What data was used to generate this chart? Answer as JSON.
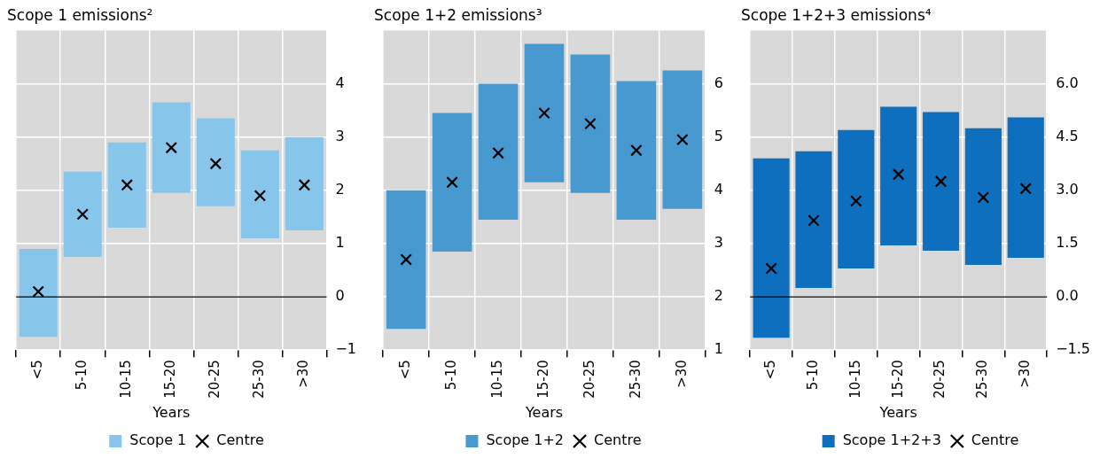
{
  "chart_data": [
    {
      "type": "bar",
      "title": "Scope 1 emissions²",
      "xlabel": "Years",
      "categories": [
        "<5",
        "5-10",
        "10-15",
        "15-20",
        "20-25",
        "25-30",
        ">30"
      ],
      "ylim": [
        -1,
        5
      ],
      "yticks": [
        -1,
        0,
        1,
        2,
        3,
        4
      ],
      "grid": true,
      "legend": "bottom",
      "ref_lines": [
        {
          "axis": "y",
          "value": 0,
          "color": "#000000"
        }
      ],
      "series": [
        {
          "name": "Scope 1",
          "color": "#87c5eb",
          "base": [
            -0.75,
            0.75,
            1.3,
            1.95,
            1.7,
            1.1,
            1.25
          ],
          "values": [
            1.65,
            1.6,
            1.6,
            1.7,
            1.65,
            1.65,
            1.75
          ]
        },
        {
          "name": "Centre",
          "type": "scatter",
          "marker": "cross",
          "color": "#000000",
          "values": [
            0.1,
            1.55,
            2.1,
            2.8,
            2.5,
            1.9,
            2.1
          ]
        }
      ]
    },
    {
      "type": "bar",
      "title": "Scope 1+2 emissions³",
      "xlabel": "Years",
      "categories": [
        "<5",
        "5-10",
        "10-15",
        "15-20",
        "20-25",
        "25-30",
        ">30"
      ],
      "ylim": [
        1,
        7
      ],
      "yticks": [
        1,
        2,
        3,
        4,
        5,
        6
      ],
      "grid": true,
      "legend": "bottom",
      "series": [
        {
          "name": "Scope 1+2",
          "color": "#4899d0",
          "base": [
            1.4,
            2.85,
            3.45,
            4.15,
            3.95,
            3.45,
            3.65
          ],
          "values": [
            2.6,
            2.6,
            2.55,
            2.6,
            2.6,
            2.6,
            2.6
          ]
        },
        {
          "name": "Centre",
          "type": "scatter",
          "marker": "cross",
          "color": "#000000",
          "values": [
            2.7,
            4.15,
            4.7,
            5.45,
            5.25,
            4.75,
            4.95
          ]
        }
      ]
    },
    {
      "type": "bar",
      "title": "Scope 1+2+3 emissions⁴",
      "xlabel": "Years",
      "categories": [
        "<5",
        "5-10",
        "10-15",
        "15-20",
        "20-25",
        "25-30",
        ">30"
      ],
      "ylim": [
        -1.5,
        7.5
      ],
      "yticks": [
        {
          "value": -1.5,
          "label": "−1.5"
        },
        {
          "value": 0,
          "label": "0.0"
        },
        {
          "value": 1.5,
          "label": "1.5"
        },
        {
          "value": 3,
          "label": "3.0"
        },
        {
          "value": 4.5,
          "label": "4.5"
        },
        {
          "value": 6,
          "label": "6.0"
        }
      ],
      "grid": true,
      "legend": "bottom",
      "ref_lines": [
        {
          "axis": "y",
          "value": 0,
          "color": "#000000"
        }
      ],
      "series": [
        {
          "name": "Scope 1+2+3",
          "color": "#0d6fbd",
          "base": [
            -1.15,
            0.25,
            0.8,
            1.45,
            1.3,
            0.9,
            1.1
          ],
          "values": [
            5.05,
            3.85,
            3.9,
            3.9,
            3.9,
            3.85,
            3.95
          ]
        },
        {
          "name": "Centre",
          "type": "scatter",
          "marker": "cross",
          "color": "#000000",
          "values": [
            0.8,
            2.15,
            2.7,
            3.45,
            3.25,
            2.8,
            3.05
          ]
        }
      ]
    }
  ]
}
